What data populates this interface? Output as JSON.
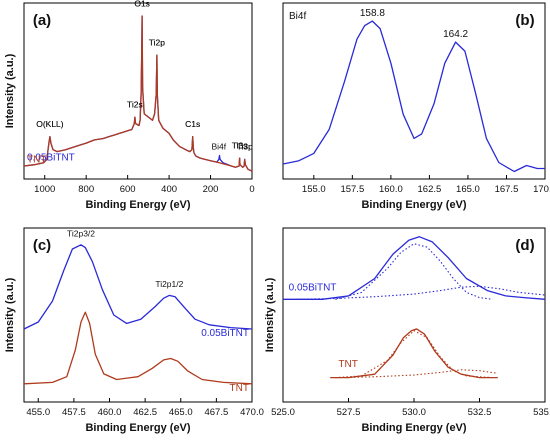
{
  "colors": {
    "blue": "#2a2ad8",
    "red": "#b03a1c",
    "text": "#111111"
  },
  "chart_data": [
    {
      "type": "line",
      "panel_label": "(a)",
      "xlabel": "Binding Energy (eV)",
      "ylabel": "Intensity (a.u.)",
      "xlim": [
        1100,
        0
      ],
      "xticks": [
        "1000",
        "800",
        "600",
        "400",
        "200",
        "0"
      ],
      "xtick_values": [
        1000,
        800,
        600,
        400,
        200,
        0
      ],
      "series": [
        {
          "name": "0.05BiTNT",
          "color": "blue",
          "x": [
            1100,
            1050,
            1005,
            990,
            980,
            975,
            970,
            960,
            940,
            900,
            850,
            800,
            760,
            720,
            690,
            660,
            640,
            620,
            600,
            580,
            568,
            565,
            562,
            545,
            540,
            535,
            532,
            530,
            528,
            520,
            500,
            480,
            470,
            462,
            459,
            457,
            450,
            430,
            400,
            380,
            350,
            320,
            300,
            290,
            286,
            283,
            280,
            270,
            250,
            200,
            170,
            160,
            157,
            154,
            140,
            100,
            80,
            62,
            60,
            58,
            45,
            38,
            35,
            32,
            20,
            0
          ],
          "y": [
            0.2,
            0.22,
            0.25,
            0.3,
            0.55,
            0.65,
            0.55,
            0.45,
            0.42,
            0.45,
            0.5,
            0.55,
            0.6,
            0.62,
            0.65,
            0.68,
            0.7,
            0.72,
            0.74,
            0.76,
            0.85,
            0.95,
            0.85,
            0.82,
            0.9,
            1.3,
            1.9,
            2.5,
            1.4,
            1.0,
            0.95,
            0.9,
            1.0,
            1.3,
            1.9,
            1.3,
            0.9,
            0.78,
            0.7,
            0.6,
            0.5,
            0.45,
            0.42,
            0.45,
            0.65,
            0.48,
            0.4,
            0.35,
            0.32,
            0.28,
            0.26,
            0.3,
            0.36,
            0.3,
            0.25,
            0.2,
            0.18,
            0.2,
            0.32,
            0.22,
            0.18,
            0.2,
            0.3,
            0.22,
            0.15,
            0.12
          ]
        },
        {
          "name": "TNT",
          "color": "red",
          "x": [
            1100,
            1050,
            1005,
            990,
            980,
            975,
            970,
            960,
            940,
            900,
            850,
            800,
            760,
            720,
            690,
            660,
            640,
            620,
            600,
            580,
            568,
            565,
            562,
            545,
            540,
            535,
            532,
            530,
            528,
            520,
            500,
            480,
            470,
            462,
            459,
            457,
            450,
            430,
            400,
            380,
            350,
            320,
            300,
            290,
            286,
            283,
            280,
            270,
            250,
            200,
            170,
            100,
            80,
            62,
            60,
            58,
            45,
            38,
            35,
            32,
            20,
            0
          ],
          "y": [
            0.2,
            0.22,
            0.25,
            0.3,
            0.55,
            0.65,
            0.55,
            0.45,
            0.42,
            0.45,
            0.5,
            0.55,
            0.6,
            0.62,
            0.65,
            0.68,
            0.7,
            0.72,
            0.74,
            0.76,
            0.85,
            0.95,
            0.85,
            0.82,
            0.9,
            1.3,
            1.9,
            2.5,
            1.4,
            1.0,
            0.95,
            0.9,
            1.0,
            1.3,
            1.9,
            1.3,
            0.9,
            0.78,
            0.7,
            0.6,
            0.5,
            0.45,
            0.42,
            0.45,
            0.65,
            0.48,
            0.4,
            0.35,
            0.32,
            0.28,
            0.26,
            0.2,
            0.18,
            0.2,
            0.32,
            0.22,
            0.18,
            0.2,
            0.3,
            0.22,
            0.15,
            0.12
          ]
        }
      ],
      "series_labels": [
        {
          "text": "0.05BiTNT",
          "color": "blue",
          "x": 1100,
          "y": 0.28
        },
        {
          "text": "TNT",
          "color": "red",
          "x": 1100,
          "y": 0.25
        }
      ],
      "annotations": [
        {
          "text": "O(KLL)",
          "series": 0,
          "x": 975,
          "dy": 0.15
        },
        {
          "text": "Ti2s",
          "series": 0,
          "x": 565,
          "dy": 0.15
        },
        {
          "text": "O1s",
          "series": 0,
          "x": 530,
          "dy": 0.15
        },
        {
          "text": "Ti2p",
          "series": 0,
          "x": 459,
          "dy": 0.15
        },
        {
          "text": "C1s",
          "series": 0,
          "x": 286,
          "dy": 0.15
        },
        {
          "text": "Bi4f",
          "series": 0,
          "x": 160,
          "dy": 0.15
        },
        {
          "text": "Ti3s",
          "series": 0,
          "x": 60,
          "dy": 0.15
        },
        {
          "text": "Ti3p",
          "series": 0,
          "x": 35,
          "dy": 0.15
        },
        {
          "text": "O(KLL)",
          "series": 1,
          "x": 975,
          "dy": 0.15
        },
        {
          "text": "Ti2s",
          "series": 1,
          "x": 565,
          "dy": 0.15
        },
        {
          "text": "O1s",
          "series": 1,
          "x": 530,
          "dy": 0.15
        },
        {
          "text": "Ti2p",
          "series": 1,
          "x": 459,
          "dy": 0.15
        },
        {
          "text": "C1s",
          "series": 1,
          "x": 286,
          "dy": 0.15
        },
        {
          "text": "Ti3s",
          "series": 1,
          "x": 60,
          "dy": 0.15
        },
        {
          "text": "Ti3p",
          "series": 1,
          "x": 35,
          "dy": 0.15
        }
      ]
    },
    {
      "type": "line",
      "panel_label": "(b)",
      "title": "Bi4f",
      "xlabel": "Binding Energy (eV)",
      "ylabel": "",
      "xlim": [
        153,
        170
      ],
      "xticks": [
        "155.0",
        "157.5",
        "160.0",
        "162.5",
        "165.0",
        "167.5",
        "170.0"
      ],
      "xtick_values": [
        155,
        157.5,
        160,
        162.5,
        165,
        167.5,
        170
      ],
      "series": [
        {
          "name": "",
          "color": "blue",
          "x": [
            153.0,
            154.0,
            155.0,
            156.0,
            157.0,
            157.8,
            158.3,
            158.8,
            159.3,
            160.0,
            160.8,
            161.5,
            162.0,
            162.8,
            163.5,
            164.2,
            164.8,
            165.5,
            166.2,
            167.0,
            168.0,
            168.8,
            169.5,
            170.0
          ],
          "y": [
            0.05,
            0.07,
            0.12,
            0.28,
            0.6,
            0.88,
            0.97,
            1.0,
            0.95,
            0.72,
            0.38,
            0.22,
            0.25,
            0.45,
            0.72,
            0.86,
            0.8,
            0.52,
            0.22,
            0.06,
            0.0,
            0.04,
            0.02,
            0.02
          ]
        }
      ],
      "peak_labels": [
        {
          "text": "158.8",
          "x": 158.8
        },
        {
          "text": "164.2",
          "x": 164.2
        }
      ]
    },
    {
      "type": "line",
      "panel_label": "(c)",
      "xlabel": "Binding Energy (eV)",
      "ylabel": "Intensity (a.u.)",
      "xlim": [
        454,
        470
      ],
      "xticks": [
        "455.0",
        "457.5",
        "460.0",
        "462.5",
        "465.0",
        "467.5",
        "470.0"
      ],
      "xtick_values": [
        455,
        457.5,
        460,
        462.5,
        465,
        467.5,
        470
      ],
      "series": [
        {
          "name": "0.05BiTNT",
          "color": "blue",
          "x": [
            454.0,
            455.0,
            456.0,
            456.8,
            457.4,
            458.0,
            458.3,
            458.8,
            459.5,
            460.3,
            461.2,
            462.2,
            463.2,
            463.8,
            464.2,
            464.6,
            465.2,
            466.0,
            467.0,
            468.5,
            470.0
          ],
          "y": [
            0.4,
            0.45,
            0.6,
            0.82,
            0.97,
            1.0,
            0.98,
            0.88,
            0.68,
            0.5,
            0.44,
            0.47,
            0.56,
            0.62,
            0.64,
            0.63,
            0.56,
            0.47,
            0.43,
            0.41,
            0.4
          ]
        },
        {
          "name": "TNT",
          "color": "red",
          "x": [
            454.0,
            456.0,
            457.0,
            457.6,
            458.0,
            458.3,
            458.6,
            459.0,
            459.6,
            460.5,
            462.0,
            463.0,
            463.8,
            464.3,
            464.8,
            465.5,
            466.5,
            468.0,
            470.0
          ],
          "y": [
            0.01,
            0.02,
            0.06,
            0.25,
            0.45,
            0.52,
            0.44,
            0.22,
            0.08,
            0.04,
            0.06,
            0.12,
            0.18,
            0.19,
            0.17,
            0.1,
            0.04,
            0.02,
            0.01
          ]
        }
      ],
      "series_labels": [
        {
          "text": "0.05BiTNT",
          "color": "blue",
          "x": 470,
          "y": 0.35
        },
        {
          "text": "TNT",
          "color": "red",
          "x": 470,
          "y": -0.04
        }
      ],
      "annotations": [
        {
          "text": "Ti2p3/2",
          "series": 0,
          "x": 458.0,
          "dy": 0.06
        },
        {
          "text": "Ti2p1/2",
          "series": 0,
          "x": 464.2,
          "dy": 0.06
        }
      ]
    },
    {
      "type": "line",
      "panel_label": "(d)",
      "xlabel": "Binding Energy (eV)",
      "ylabel": "Intensity (a.u.)",
      "xlim": [
        525,
        535
      ],
      "xticks": [
        "525.0",
        "527.5",
        "530.0",
        "532.5",
        "535.0"
      ],
      "xtick_values": [
        525,
        527.5,
        530,
        532.5,
        535
      ],
      "series": [
        {
          "name": "0.05BiTNT",
          "color": "blue",
          "x": [
            525.0,
            526.5,
            527.5,
            528.5,
            529.2,
            529.8,
            530.2,
            530.7,
            531.3,
            532.0,
            532.8,
            533.5,
            534.2,
            535.0
          ],
          "y": [
            0.64,
            0.64,
            0.66,
            0.76,
            0.9,
            0.98,
            1.0,
            0.97,
            0.88,
            0.76,
            0.69,
            0.66,
            0.65,
            0.64
          ]
        },
        {
          "name": "TNT",
          "color": "red",
          "x": [
            526.8,
            527.5,
            528.5,
            529.2,
            529.6,
            529.9,
            530.1,
            530.4,
            530.8,
            531.3,
            531.8,
            532.5,
            533.2
          ],
          "y": [
            0.19,
            0.19,
            0.21,
            0.32,
            0.42,
            0.46,
            0.47,
            0.44,
            0.34,
            0.25,
            0.21,
            0.19,
            0.19
          ]
        }
      ],
      "fit_series": [
        {
          "color": "blue",
          "x": [
            527.0,
            528.0,
            529.0,
            529.5,
            530.0,
            530.5,
            531.0,
            531.5,
            532.0,
            532.5,
            533.0
          ],
          "y": [
            0.64,
            0.68,
            0.82,
            0.91,
            0.96,
            0.94,
            0.86,
            0.76,
            0.68,
            0.65,
            0.64
          ]
        },
        {
          "color": "blue",
          "x": [
            525.5,
            527.0,
            528.5,
            530.0,
            531.0,
            531.8,
            532.5,
            533.3,
            534.0,
            535.0
          ],
          "y": [
            0.64,
            0.645,
            0.655,
            0.67,
            0.69,
            0.71,
            0.715,
            0.7,
            0.68,
            0.665
          ]
        },
        {
          "color": "red",
          "x": [
            527.0,
            528.0,
            529.0,
            529.5,
            530.0,
            530.5,
            531.0,
            531.5,
            532.0,
            533.0
          ],
          "y": [
            0.19,
            0.2,
            0.29,
            0.39,
            0.46,
            0.42,
            0.31,
            0.23,
            0.2,
            0.19
          ]
        },
        {
          "color": "red",
          "x": [
            527.0,
            528.5,
            530.0,
            531.0,
            531.8,
            532.5,
            533.2
          ],
          "y": [
            0.19,
            0.195,
            0.205,
            0.22,
            0.235,
            0.23,
            0.215
          ]
        }
      ],
      "series_labels": [
        {
          "text": "0.05BiTNT",
          "color": "blue",
          "x": 525.1,
          "y": 0.69
        },
        {
          "text": "TNT",
          "color": "red",
          "x": 527.0,
          "y": 0.25
        }
      ]
    }
  ]
}
